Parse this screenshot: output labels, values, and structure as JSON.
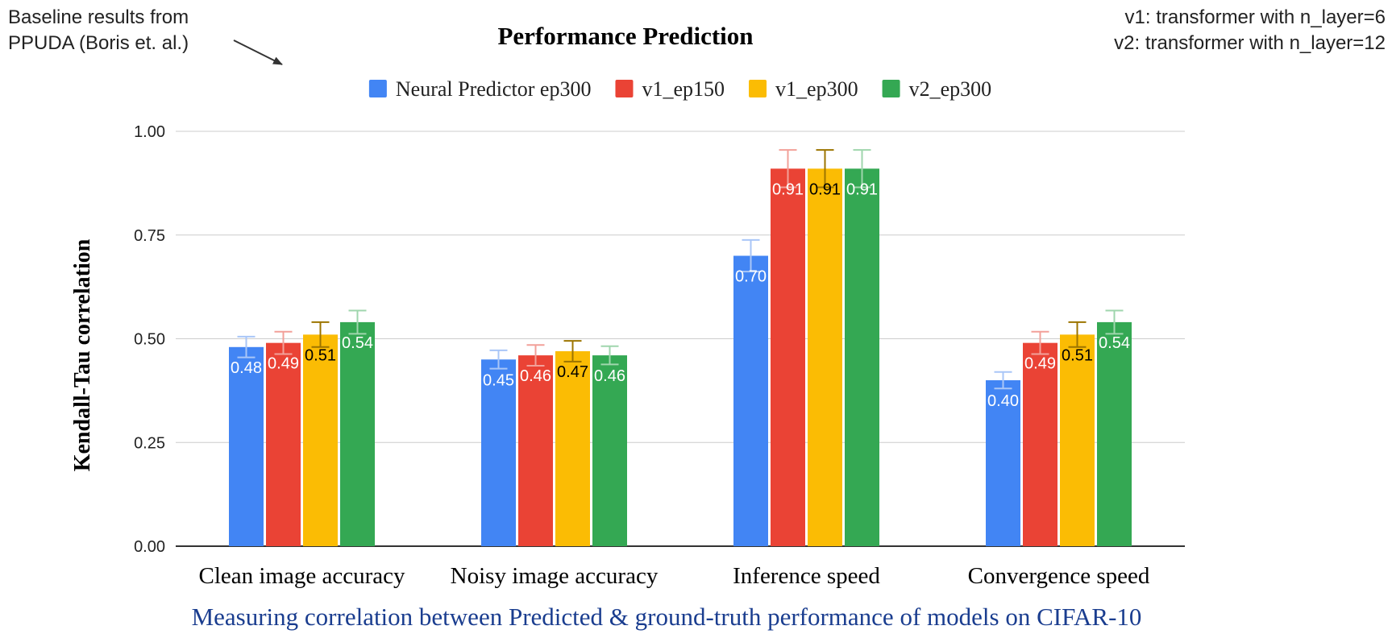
{
  "annotations": {
    "baseline_note": [
      "Baseline results from",
      "PPUDA (Boris et. al.)"
    ],
    "version_notes": [
      "v1: transformer with n_layer=6",
      "v2: transformer with n_layer=12"
    ]
  },
  "caption": "Measuring correlation between Predicted & ground-truth performance of models on CIFAR-10",
  "chart_data": {
    "type": "bar",
    "title": "Performance Prediction",
    "xlabel": "",
    "ylabel": "Kendall-Tau correlation",
    "ylim": [
      0,
      1
    ],
    "yticks": [
      "0.00",
      "0.25",
      "0.50",
      "0.75",
      "1.00"
    ],
    "grid": true,
    "legend_position": "top",
    "categories": [
      "Clean image accuracy",
      "Noisy image accuracy",
      "Inference speed",
      "Convergence speed"
    ],
    "series": [
      {
        "name": "Neural Predictor ep300",
        "color": "#4285f4",
        "label_color": "#ffffff",
        "error_color": "#a9c6f7",
        "values": [
          0.48,
          0.45,
          0.7,
          0.4
        ],
        "labels": [
          "0.48",
          "0.45",
          "0.70",
          "0.40"
        ],
        "error": [
          0.025,
          0.022,
          0.038,
          0.02
        ]
      },
      {
        "name": "v1_ep150",
        "color": "#ea4335",
        "label_color": "#ffffff",
        "error_color": "#f2a099",
        "values": [
          0.49,
          0.46,
          0.91,
          0.49
        ],
        "labels": [
          "0.49",
          "0.46",
          "0.91",
          "0.49"
        ],
        "error": [
          0.027,
          0.025,
          0.045,
          0.027
        ]
      },
      {
        "name": "v1_ep300",
        "color": "#fbbc04",
        "label_color": "#000000",
        "error_color": "#9c7400",
        "values": [
          0.51,
          0.47,
          0.91,
          0.51
        ],
        "labels": [
          "0.51",
          "0.47",
          "0.91",
          "0.51"
        ],
        "error": [
          0.03,
          0.025,
          0.045,
          0.03
        ]
      },
      {
        "name": "v2_ep300",
        "color": "#34a853",
        "label_color": "#ffffff",
        "error_color": "#9fd6ad",
        "values": [
          0.54,
          0.46,
          0.91,
          0.54
        ],
        "labels": [
          "0.54",
          "0.46",
          "0.91",
          "0.54"
        ],
        "error": [
          0.028,
          0.022,
          0.045,
          0.028
        ]
      }
    ]
  }
}
